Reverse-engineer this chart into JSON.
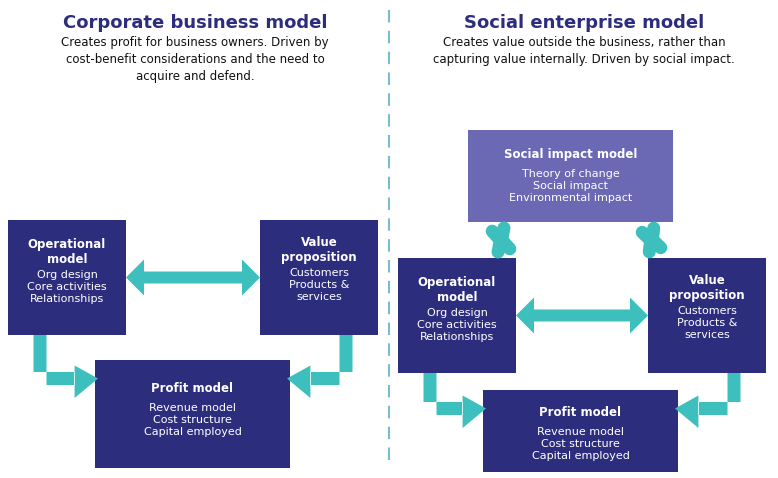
{
  "fig_width": 7.78,
  "fig_height": 4.78,
  "dpi": 100,
  "bg_color": "#ffffff",
  "divider_color": "#7bbccc",
  "box_dark": "#2d2d7e",
  "box_medium": "#6b69b4",
  "arrow_color": "#3dbfbe",
  "text_white": "#ffffff",
  "title_color": "#2d2d7e",
  "body_text_color": "#111111",
  "left_title": "Corporate business model",
  "left_subtitle": "Creates profit for business owners. Driven by\ncost-benefit considerations and the need to\nacquire and defend.",
  "right_title": "Social enterprise model",
  "right_subtitle": "Creates value outside the business, rather than\ncapturing value internally. Driven by social impact.",
  "op_title": "Operational\nmodel",
  "op_body": "Org design\nCore activities\nRelationships",
  "vp_title": "Value\nproposition",
  "vp_body": "Customers\nProducts &\nservices",
  "pm_title": "Profit model",
  "pm_body": "Revenue model\nCost structure\nCapital employed",
  "si_title": "Social impact model",
  "si_body": "Theory of change\nSocial impact\nEnvironmental impact"
}
